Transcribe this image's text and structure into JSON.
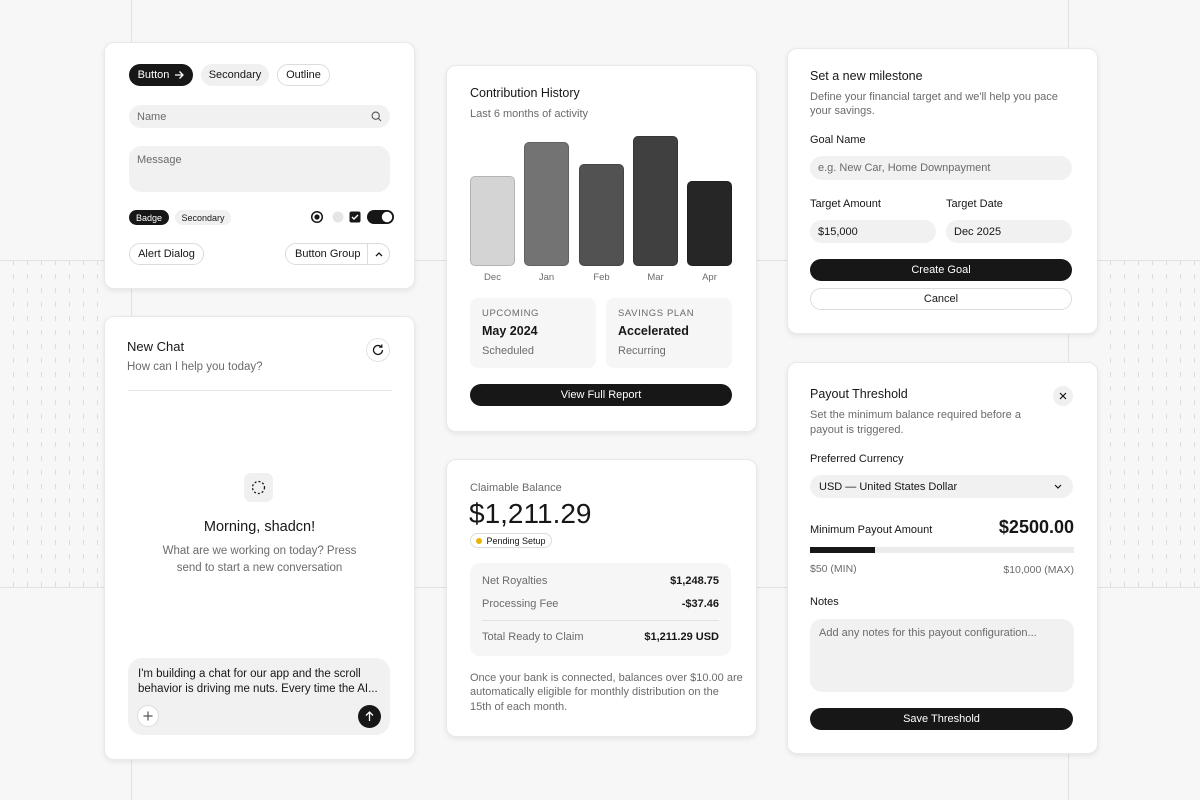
{
  "components": {
    "buttons": [
      "Button",
      "Secondary",
      "Outline"
    ],
    "name_placeholder": "Name",
    "message_placeholder": "Message",
    "badges": [
      "Badge",
      "Secondary"
    ],
    "alert_dialog": "Alert Dialog",
    "button_group": "Button Group"
  },
  "chat": {
    "title": "New Chat",
    "subtitle": "How can I help you today?",
    "greeting": "Morning, shadcn!",
    "prompt_lines": [
      "What are we working on today? Press",
      "send to start a new conversation"
    ],
    "draft_lines": [
      "I'm building a chat for our app and the scroll",
      "behavior is driving me nuts. Every time the AI..."
    ]
  },
  "contribution": {
    "title": "Contribution History",
    "subtitle": "Last 6 months of activity",
    "bars": {
      "categories": [
        "Dec",
        "Jan",
        "Feb",
        "Mar",
        "Apr"
      ],
      "values": [
        90,
        124,
        102,
        130,
        85
      ],
      "colors": [
        "#d4d4d4",
        "#737373",
        "#525252",
        "#404040",
        "#262626"
      ]
    },
    "tiles": [
      {
        "label": "UPCOMING",
        "value": "May 2024",
        "note": "Scheduled"
      },
      {
        "label": "SAVINGS PLAN",
        "value": "Accelerated",
        "note": "Recurring"
      }
    ],
    "button": "View Full Report"
  },
  "balance": {
    "label": "Claimable Balance",
    "amount": "$1,211.29",
    "status": "Pending Setup",
    "rows": [
      {
        "name": "Net Royalties",
        "value": "$1,248.75"
      },
      {
        "name": "Processing Fee",
        "value": "-$37.46"
      },
      {
        "name": "Total Ready to Claim",
        "value": "$1,211.29 USD"
      }
    ],
    "footer_lines": [
      "Once your bank is connected, balances over $10.00 are",
      "automatically eligible for monthly distribution on the",
      "15th of each month."
    ]
  },
  "milestone": {
    "title": "Set a new milestone",
    "description_lines": [
      "Define your financial target and we'll help you pace",
      "your savings."
    ],
    "goal_label": "Goal Name",
    "goal_placeholder": "e.g. New Car, Home Downpayment",
    "amount_label": "Target Amount",
    "amount_value": "$15,000",
    "date_label": "Target Date",
    "date_value": "Dec 2025",
    "submit": "Create Goal",
    "cancel": "Cancel"
  },
  "payout": {
    "title": "Payout Threshold",
    "description_lines": [
      "Set the minimum balance required before a",
      "payout is triggered."
    ],
    "currency_label": "Preferred Currency",
    "currency_value": "USD — United States Dollar",
    "amount_label": "Minimum Payout Amount",
    "amount_text": "$2500.00",
    "slider": {
      "value": 2500,
      "min": 50,
      "max": 10000
    },
    "min_text": "$50 (MIN)",
    "max_text": "$10,000 (MAX)",
    "notes_label": "Notes",
    "notes_placeholder": "Add any notes for this payout configuration...",
    "submit": "Save Threshold"
  }
}
